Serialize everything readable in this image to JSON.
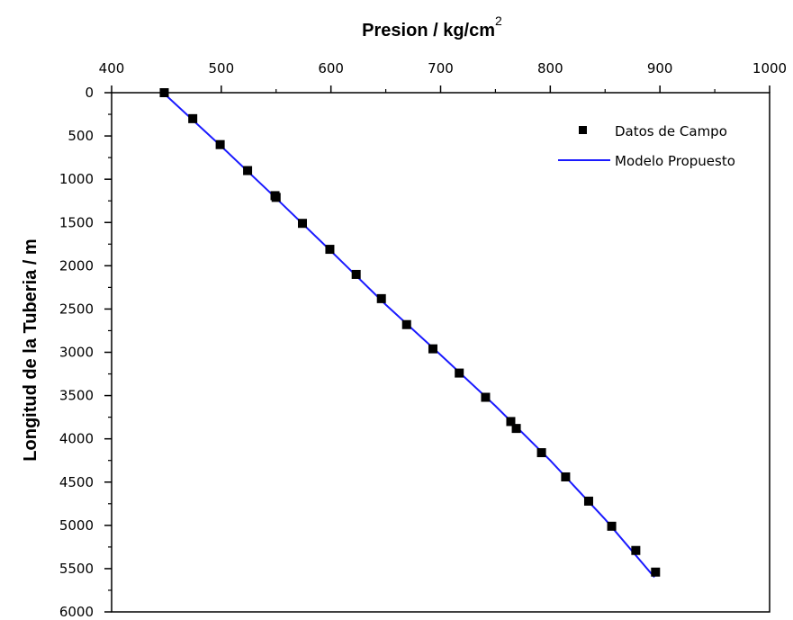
{
  "chart_data": {
    "type": "scatter",
    "title": "",
    "xlabel": "Presion / kg/cm",
    "xlabel_superscript": "2",
    "ylabel": "Longitud de la Tuberia / m",
    "xlim": [
      400,
      1000
    ],
    "ylim": [
      0,
      6000
    ],
    "y_inverted": true,
    "x_axis_position": "top",
    "xticks": [
      400,
      500,
      600,
      700,
      800,
      900,
      1000
    ],
    "yticks": [
      0,
      500,
      1000,
      1500,
      2000,
      2500,
      3000,
      3500,
      4000,
      4500,
      5000,
      5500,
      6000
    ],
    "xtick_labels": [
      "400",
      "500",
      "600",
      "700",
      "800",
      "900",
      "1000"
    ],
    "ytick_labels": [
      "0",
      "500",
      "1000",
      "1500",
      "2000",
      "2500",
      "3000",
      "3500",
      "4000",
      "4500",
      "5000",
      "5500",
      "6000"
    ],
    "grid": false,
    "legend_position": "top-right",
    "series": [
      {
        "name": "Datos de Campo",
        "kind": "markers",
        "marker": "square",
        "color": "#000000",
        "x": [
          448,
          474,
          499,
          524,
          549,
          550,
          574,
          599,
          623,
          646,
          669,
          693,
          717,
          741,
          764,
          769,
          792,
          814,
          835,
          856,
          878,
          896
        ],
        "y": [
          0,
          300,
          600,
          900,
          1190,
          1210,
          1510,
          1810,
          2100,
          2380,
          2680,
          2960,
          3240,
          3520,
          3800,
          3880,
          4160,
          4440,
          4720,
          5010,
          5290,
          5540
        ]
      },
      {
        "name": "Modelo Propuesto",
        "kind": "line",
        "color": "#1a1aff",
        "x": [
          447,
          500,
          550,
          600,
          650,
          700,
          750,
          800,
          850,
          895
        ],
        "y": [
          0,
          620,
          1220,
          1830,
          2450,
          3030,
          3620,
          4250,
          4930,
          5600
        ]
      }
    ]
  }
}
